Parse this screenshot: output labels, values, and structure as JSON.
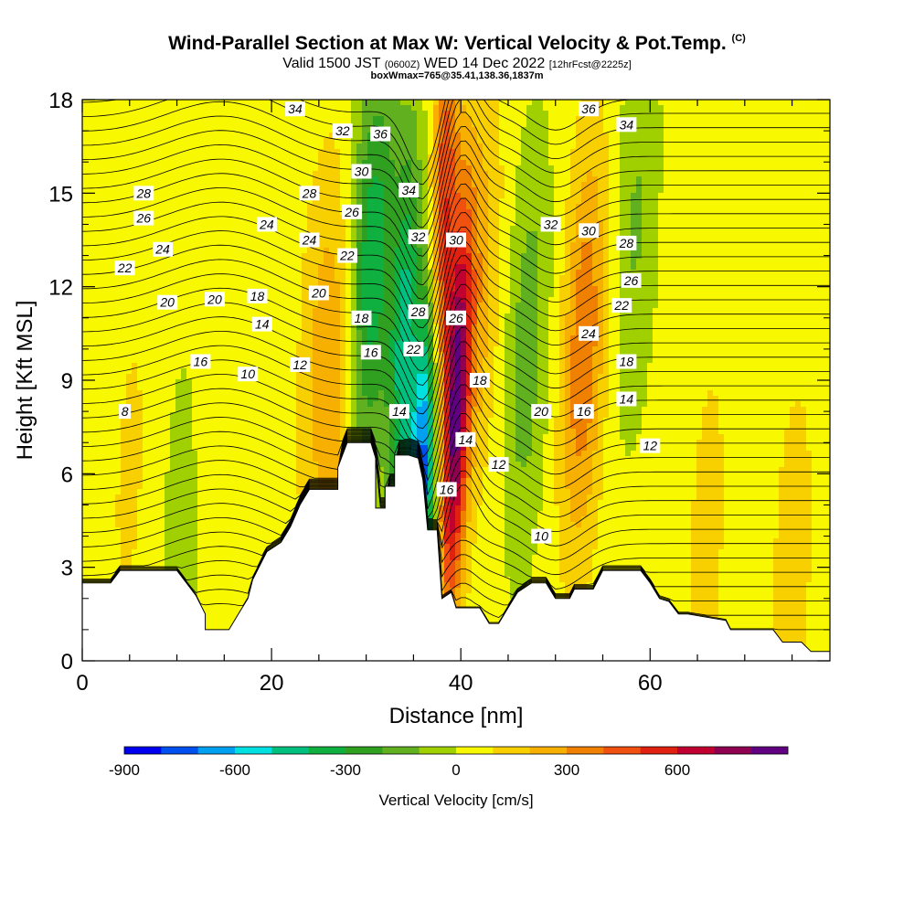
{
  "title": {
    "main": "Wind-Parallel Section at Max W: Vertical Velocity & Pot.Temp.",
    "mark": "(C)",
    "valid_prefix": "Valid 1500 JST",
    "valid_utc": "(0600Z)",
    "valid_date": "WED 14 Dec 2022",
    "forecast": "[12hrFcst@2225z]",
    "box": "boxWmax=765@35.41,138.36,1837m"
  },
  "chart_data": {
    "type": "heatmap",
    "xlabel": "Distance [nm]",
    "ylabel": "Height [Kft MSL]",
    "xlim": [
      0,
      79
    ],
    "ylim": [
      0,
      18
    ],
    "x_ticks": [
      0,
      20,
      40,
      60
    ],
    "y_ticks": [
      0,
      3,
      6,
      9,
      12,
      15,
      18
    ],
    "colorbar": {
      "label": "Vertical Velocity [cm/s]",
      "ticks": [
        -900,
        -600,
        -300,
        0,
        300,
        600
      ],
      "bins": [
        -900,
        -800,
        -700,
        -600,
        -500,
        -400,
        -300,
        -200,
        -100,
        0,
        100,
        200,
        300,
        400,
        500,
        600,
        700,
        800
      ],
      "colors": [
        "#0000f0",
        "#0050f0",
        "#00a0f0",
        "#00e0e0",
        "#00c080",
        "#10b040",
        "#30a020",
        "#60b020",
        "#a0d000",
        "#f8f800",
        "#f8d000",
        "#f8b000",
        "#f08000",
        "#f05010",
        "#e02010",
        "#c00030",
        "#900050",
        "#600080"
      ]
    },
    "velocity_field": [
      {
        "x": 5,
        "h": 6,
        "w": 80
      },
      {
        "x": 11,
        "h": 4,
        "w": -150
      },
      {
        "x": 13,
        "h": 7,
        "w": 100
      },
      {
        "x": 25,
        "h": 10,
        "w": 150
      },
      {
        "x": 27.5,
        "h": 9,
        "w": 250
      },
      {
        "x": 29.5,
        "h": 12,
        "w": -300
      },
      {
        "x": 31.5,
        "h": 13,
        "w": -250
      },
      {
        "x": 34,
        "h": 10,
        "w": -450
      },
      {
        "x": 36,
        "h": 6,
        "w": -850
      },
      {
        "x": 38,
        "h": 14,
        "w": 500
      },
      {
        "x": 39.5,
        "h": 8,
        "w": 765
      },
      {
        "x": 42,
        "h": 12,
        "w": 200
      },
      {
        "x": 47,
        "h": 10,
        "w": -200
      },
      {
        "x": 53,
        "h": 10,
        "w": 350
      },
      {
        "x": 58.5,
        "h": 14,
        "w": -150
      },
      {
        "x": 66,
        "h": 4,
        "w": 100
      },
      {
        "x": 75,
        "h": 3,
        "w": 120
      }
    ],
    "theta_labels": [
      "8",
      "10",
      "12",
      "14",
      "16",
      "18",
      "20",
      "22",
      "24",
      "26",
      "28",
      "30",
      "32",
      "34",
      "36"
    ],
    "terrain": [
      [
        0,
        2.5
      ],
      [
        3,
        2.5
      ],
      [
        4,
        2.9
      ],
      [
        10,
        2.9
      ],
      [
        11,
        2.5
      ],
      [
        12,
        2.1
      ],
      [
        13,
        1.5
      ],
      [
        13,
        1.0
      ],
      [
        15.5,
        1.0
      ],
      [
        16.5,
        1.5
      ],
      [
        17.5,
        2.0
      ],
      [
        18,
        2.6
      ],
      [
        19.5,
        3.5
      ],
      [
        21,
        3.8
      ],
      [
        22,
        4.3
      ],
      [
        23,
        5.0
      ],
      [
        24,
        5.5
      ],
      [
        27,
        5.5
      ],
      [
        27,
        6.2
      ],
      [
        28,
        7.0
      ],
      [
        30.5,
        7.0
      ],
      [
        31,
        6.5
      ],
      [
        31,
        4.9
      ],
      [
        32,
        4.9
      ],
      [
        32,
        5.6
      ],
      [
        33,
        5.6
      ],
      [
        33,
        6.6
      ],
      [
        34.5,
        6.6
      ],
      [
        35.5,
        6.5
      ],
      [
        36,
        5.8
      ],
      [
        36.5,
        4.2
      ],
      [
        37.5,
        4.2
      ],
      [
        38,
        2.0
      ],
      [
        39,
        2.2
      ],
      [
        39.5,
        1.7
      ],
      [
        42,
        1.7
      ],
      [
        43,
        1.2
      ],
      [
        44,
        1.2
      ],
      [
        45,
        1.7
      ],
      [
        46,
        2.2
      ],
      [
        47.5,
        2.5
      ],
      [
        49,
        2.5
      ],
      [
        50,
        2.0
      ],
      [
        51.5,
        2.0
      ],
      [
        52,
        2.3
      ],
      [
        54,
        2.3
      ],
      [
        55,
        2.9
      ],
      [
        59,
        2.9
      ],
      [
        60,
        2.5
      ],
      [
        61,
        2.0
      ],
      [
        62,
        1.9
      ],
      [
        63,
        1.5
      ],
      [
        64,
        1.5
      ],
      [
        68,
        1.3
      ],
      [
        68.5,
        1.0
      ],
      [
        70,
        1.0
      ],
      [
        73,
        1.0
      ],
      [
        74,
        0.6
      ],
      [
        76,
        0.6
      ],
      [
        77,
        0.3
      ],
      [
        79,
        0.3
      ],
      [
        79,
        0
      ],
      [
        0,
        0
      ]
    ]
  }
}
